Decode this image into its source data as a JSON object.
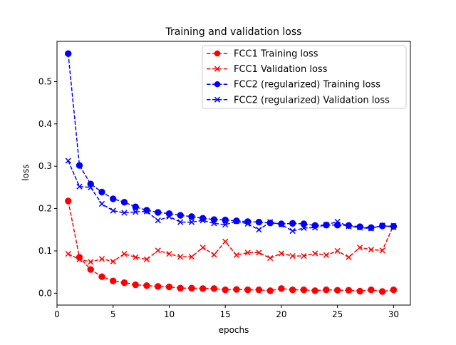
{
  "chart_data": {
    "type": "line",
    "title": "Training and validation loss",
    "xlabel": "epochs",
    "ylabel": "loss",
    "xlim": [
      0,
      31.5
    ],
    "ylim": [
      -0.028,
      0.595
    ],
    "xticks": [
      0,
      5,
      10,
      15,
      20,
      25,
      30
    ],
    "yticks": [
      0.0,
      0.1,
      0.2,
      0.3,
      0.4,
      0.5
    ],
    "xtick_labels": [
      "0",
      "5",
      "10",
      "15",
      "20",
      "25",
      "30"
    ],
    "ytick_labels": [
      "0.0",
      "0.1",
      "0.2",
      "0.3",
      "0.4",
      "0.5"
    ],
    "grid": false,
    "legend_position": "top-right",
    "x": [
      1,
      2,
      3,
      4,
      5,
      6,
      7,
      8,
      9,
      10,
      11,
      12,
      13,
      14,
      15,
      16,
      17,
      18,
      19,
      20,
      21,
      22,
      23,
      24,
      25,
      26,
      27,
      28,
      29,
      30
    ],
    "series": [
      {
        "name": "FCC1 Training loss",
        "color": "#ff0000",
        "marker": "circle",
        "values": [
          0.218,
          0.085,
          0.056,
          0.039,
          0.029,
          0.025,
          0.02,
          0.018,
          0.016,
          0.015,
          0.012,
          0.012,
          0.011,
          0.011,
          0.008,
          0.009,
          0.008,
          0.008,
          0.006,
          0.011,
          0.008,
          0.008,
          0.006,
          0.008,
          0.007,
          0.007,
          0.005,
          0.008,
          0.004,
          0.008
        ]
      },
      {
        "name": "FCC1 Validation loss",
        "color": "#ff0000",
        "marker": "x",
        "values": [
          0.093,
          0.08,
          0.074,
          0.081,
          0.075,
          0.093,
          0.085,
          0.08,
          0.101,
          0.093,
          0.086,
          0.086,
          0.108,
          0.091,
          0.122,
          0.09,
          0.096,
          0.096,
          0.083,
          0.094,
          0.088,
          0.088,
          0.094,
          0.09,
          0.1,
          0.085,
          0.108,
          0.103,
          0.101,
          0.16
        ]
      },
      {
        "name": "FCC2 (regularized) Training loss",
        "color": "#0000ff",
        "marker": "circle",
        "values": [
          0.566,
          0.302,
          0.258,
          0.239,
          0.223,
          0.215,
          0.204,
          0.196,
          0.191,
          0.188,
          0.184,
          0.181,
          0.177,
          0.174,
          0.173,
          0.171,
          0.169,
          0.168,
          0.166,
          0.164,
          0.165,
          0.164,
          0.16,
          0.161,
          0.161,
          0.16,
          0.157,
          0.155,
          0.159,
          0.158
        ]
      },
      {
        "name": "FCC2 (regularized) Validation loss",
        "color": "#0000ff",
        "marker": "x",
        "values": [
          0.313,
          0.252,
          0.25,
          0.211,
          0.195,
          0.19,
          0.192,
          0.193,
          0.172,
          0.181,
          0.168,
          0.168,
          0.172,
          0.165,
          0.162,
          0.17,
          0.164,
          0.15,
          0.168,
          0.162,
          0.147,
          0.154,
          0.155,
          0.162,
          0.169,
          0.158,
          0.155,
          0.153,
          0.16,
          0.156
        ]
      }
    ]
  }
}
